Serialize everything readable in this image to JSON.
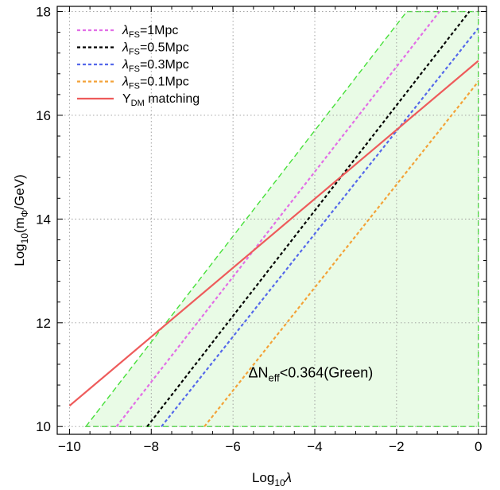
{
  "chart_data": {
    "type": "line",
    "x_label": {
      "main": "Log",
      "sub": "10",
      "tail": "λ"
    },
    "y_label": {
      "main": "Log",
      "sub": "10",
      "mid": "(m",
      "sub2": "Φ",
      "tail": "/GeV)"
    },
    "xlim": [
      -10.3,
      0.2
    ],
    "ylim": [
      9.85,
      18.1
    ],
    "x_ticks": [
      -10,
      -8,
      -6,
      -4,
      -2,
      0
    ],
    "x_tick_labels": [
      "−10",
      "−8",
      "−6",
      "−4",
      "−2",
      "0"
    ],
    "y_ticks": [
      10,
      12,
      14,
      16,
      18
    ],
    "y_tick_labels": [
      "10",
      "12",
      "14",
      "16",
      "18"
    ],
    "x_minor_step": 0.5,
    "y_minor_step": 0.4,
    "grid": true,
    "legend_position": "top-left",
    "region": {
      "name": "ΔN_eff<0.364(Green)",
      "fill": "#e9fbe6",
      "edge": "#47e03a",
      "polygon": [
        [
          -9.6,
          10
        ],
        [
          -1.75,
          18
        ],
        [
          0,
          18
        ],
        [
          0,
          10
        ]
      ]
    },
    "series": [
      {
        "label_main": "λ",
        "label_sub": "FS",
        "label_tail": "=1Mpc",
        "color": "#e26ee6",
        "dash": "4,3",
        "x": [
          -8.85,
          -0.95
        ],
        "y": [
          10,
          18
        ]
      },
      {
        "label_main": "λ",
        "label_sub": "FS",
        "label_tail": "=0.5Mpc",
        "color": "#000000",
        "dash": "4,3",
        "x": [
          -8.1,
          -0.22
        ],
        "y": [
          10,
          18
        ]
      },
      {
        "label_main": "λ",
        "label_sub": "FS",
        "label_tail": "=0.3Mpc",
        "color": "#5468ea",
        "dash": "4,3",
        "x": [
          -7.75,
          0
        ],
        "y": [
          10,
          17.68
        ]
      },
      {
        "label_main": "λ",
        "label_sub": "FS",
        "label_tail": "=0.1Mpc",
        "color": "#f3a238",
        "dash": "4,3",
        "x": [
          -6.7,
          0
        ],
        "y": [
          10,
          16.65
        ]
      },
      {
        "label_main": "Y",
        "label_sub": "DM",
        "label_tail": " matching",
        "color": "#ee5b5b",
        "dash": "",
        "x": [
          -10,
          0
        ],
        "y": [
          10.4,
          17.05
        ]
      }
    ],
    "annotation": {
      "main": "ΔN",
      "sub": "eff",
      "tail": "<0.364(Green)",
      "x": -4.1,
      "y": 10.95
    }
  }
}
